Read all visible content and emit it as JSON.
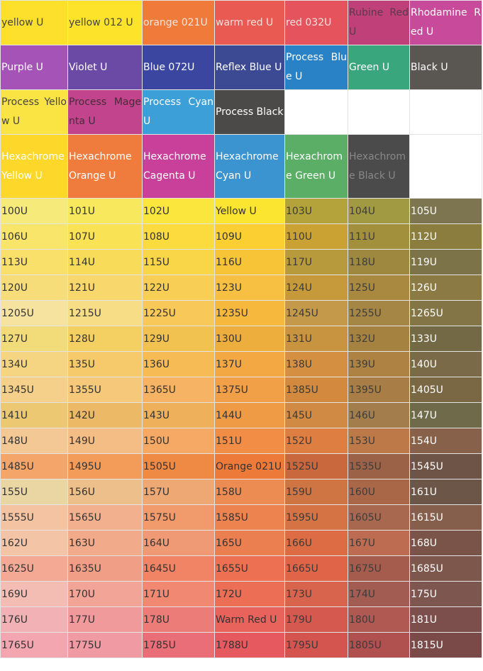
{
  "rows": [
    [
      {
        "text": "yellow U",
        "bg": "#fde02b",
        "fg": "#444"
      },
      {
        "text": "yellow 012 U",
        "bg": "#fde32a",
        "fg": "#444"
      },
      {
        "text": "orange 021U",
        "bg": "#ef7a3a",
        "fg": "#f4e4dc"
      },
      {
        "text": "warm red U",
        "bg": "#e85a52",
        "fg": "#f4e0dc"
      },
      {
        "text": "red 032U",
        "bg": "#e5545d",
        "fg": "#f4e0dc"
      },
      {
        "text": "Rubine Red U",
        "bg": "#c0407a",
        "fg": "#5a3a4a"
      },
      {
        "text": "Rhodamine Red U",
        "bg": "#c84a9b",
        "fg": "#fff"
      }
    ],
    [
      {
        "text": "Purple U",
        "bg": "#a553b7",
        "fg": "#fff"
      },
      {
        "text": "Violet U",
        "bg": "#6b4aa5",
        "fg": "#fff"
      },
      {
        "text": "Blue 072U",
        "bg": "#3a46a0",
        "fg": "#fff"
      },
      {
        "text": "Reflex Blue U",
        "bg": "#3b4a93",
        "fg": "#fff"
      },
      {
        "text": "Process Blue U",
        "bg": "#2a82c6",
        "fg": "#fff"
      },
      {
        "text": "Green U",
        "bg": "#3aa67e",
        "fg": "#fff"
      },
      {
        "text": "Black U",
        "bg": "#5a5753",
        "fg": "#fff"
      }
    ],
    [
      {
        "text": "Process Yellow U",
        "bg": "#fae443",
        "fg": "#444"
      },
      {
        "text": "Process Magenta U",
        "bg": "#c2448c",
        "fg": "#4a2a3a"
      },
      {
        "text": "Process Cyan U",
        "bg": "#3c9fd8",
        "fg": "#fff"
      },
      {
        "text": "Process Black",
        "bg": "#4b4a48",
        "fg": "#fff"
      },
      {
        "bg": "#fff"
      },
      {
        "bg": "#fff"
      },
      {
        "bg": "#fff"
      }
    ],
    [
      {
        "text": "Hexachrome Yellow U",
        "bg": "#fdd82a",
        "fg": "#fff"
      },
      {
        "text": "Hexachrome Orange U",
        "bg": "#ef7c3c",
        "fg": "#fff"
      },
      {
        "text": "Hexachrome Cagenta U",
        "bg": "#c8409a",
        "fg": "#fff"
      },
      {
        "text": "Hexachrome Cyan U",
        "bg": "#3b94d0",
        "fg": "#fff"
      },
      {
        "text": "Hexachrome Green U",
        "bg": "#5aae66",
        "fg": "#fff"
      },
      {
        "text": "Hexachrome Black U",
        "bg": "#4b4b4b",
        "fg": "#888"
      },
      {
        "bg": "#fff"
      }
    ],
    [
      {
        "text": "100U",
        "bg": "#f6ea7a"
      },
      {
        "text": "101U",
        "bg": "#f8e85e"
      },
      {
        "text": "102U",
        "bg": "#fae63c"
      },
      {
        "text": "Yellow U",
        "bg": "#fce530"
      },
      {
        "text": "103U",
        "bg": "#b3a33a"
      },
      {
        "text": "104U",
        "bg": "#a29a42"
      },
      {
        "text": "105U",
        "bg": "#7d7450"
      }
    ],
    [
      {
        "text": "106U",
        "bg": "#f8e56a"
      },
      {
        "text": "107U",
        "bg": "#f9e254"
      },
      {
        "text": "108U",
        "bg": "#fbdb3e"
      },
      {
        "text": "109U",
        "bg": "#fbcf32"
      },
      {
        "text": "110U",
        "bg": "#c9a233"
      },
      {
        "text": "111U",
        "bg": "#a3903d"
      },
      {
        "text": "112U",
        "bg": "#8a7d3e"
      }
    ],
    [
      {
        "text": "113U",
        "bg": "#f8e06a"
      },
      {
        "text": "114U",
        "bg": "#f9db5a"
      },
      {
        "text": "115U",
        "bg": "#f9d548"
      },
      {
        "text": "116U",
        "bg": "#f7c337"
      },
      {
        "text": "117U",
        "bg": "#b79a3c"
      },
      {
        "text": "118U",
        "bg": "#9e8840"
      },
      {
        "text": "119U",
        "bg": "#7c7448"
      }
    ],
    [
      {
        "text": "120U",
        "bg": "#f7dc7a"
      },
      {
        "text": "121U",
        "bg": "#f8d76c"
      },
      {
        "text": "122U",
        "bg": "#f9ce55"
      },
      {
        "text": "123U",
        "bg": "#f7c042"
      },
      {
        "text": "124U",
        "bg": "#c69a3a"
      },
      {
        "text": "125U",
        "bg": "#a98840"
      },
      {
        "text": "126U",
        "bg": "#8c7a44"
      }
    ],
    [
      {
        "text": "1205U",
        "bg": "#f6e3a0"
      },
      {
        "text": "1215U",
        "bg": "#f7dd86"
      },
      {
        "text": "1225U",
        "bg": "#f8c858"
      },
      {
        "text": "1235U",
        "bg": "#f6b93e"
      },
      {
        "text": "1245U",
        "bg": "#c49a4a"
      },
      {
        "text": "1255U",
        "bg": "#a58645"
      },
      {
        "text": "1265U",
        "bg": "#847547"
      }
    ],
    [
      {
        "text": "127U",
        "bg": "#f2dc7a"
      },
      {
        "text": "128U",
        "bg": "#f4d062"
      },
      {
        "text": "129U",
        "bg": "#f2c250"
      },
      {
        "text": "130U",
        "bg": "#eeae3e"
      },
      {
        "text": "131U",
        "bg": "#c9943f"
      },
      {
        "text": "132U",
        "bg": "#a58240"
      },
      {
        "text": "133U",
        "bg": "#736a45"
      }
    ],
    [
      {
        "text": "134U",
        "bg": "#f5d582"
      },
      {
        "text": "135U",
        "bg": "#f6c96a"
      },
      {
        "text": "136U",
        "bg": "#f6bb55"
      },
      {
        "text": "137U",
        "bg": "#f3a844"
      },
      {
        "text": "138U",
        "bg": "#d48f40"
      },
      {
        "text": "139U",
        "bg": "#ad8242"
      },
      {
        "text": "140U",
        "bg": "#7b6a48"
      }
    ],
    [
      {
        "text": "1345U",
        "bg": "#f5d08a"
      },
      {
        "text": "1355U",
        "bg": "#f6c87a"
      },
      {
        "text": "1365U",
        "bg": "#f5b363"
      },
      {
        "text": "1375U",
        "bg": "#f2a048"
      },
      {
        "text": "1385U",
        "bg": "#d48a3e"
      },
      {
        "text": "1395U",
        "bg": "#a97d46"
      },
      {
        "text": "1405U",
        "bg": "#7a6744"
      }
    ],
    [
      {
        "text": "141U",
        "bg": "#ecc873"
      },
      {
        "text": "142U",
        "bg": "#ecb966"
      },
      {
        "text": "143U",
        "bg": "#eeb05a"
      },
      {
        "text": "144U",
        "bg": "#ef9a45"
      },
      {
        "text": "145U",
        "bg": "#d08a44"
      },
      {
        "text": "146U",
        "bg": "#a37e4c"
      },
      {
        "text": "147U",
        "bg": "#6f6a4a"
      }
    ],
    [
      {
        "text": "148U",
        "bg": "#f4c894"
      },
      {
        "text": "149U",
        "bg": "#f5bd86"
      },
      {
        "text": "150U",
        "bg": "#f5a964"
      },
      {
        "text": "151U",
        "bg": "#f28d45"
      },
      {
        "text": "152U",
        "bg": "#de7e40"
      },
      {
        "text": "153U",
        "bg": "#bd7a48"
      },
      {
        "text": "154U",
        "bg": "#88614a"
      }
    ],
    [
      {
        "text": "1485U",
        "bg": "#f4a56a"
      },
      {
        "text": "1495U",
        "bg": "#f39b58"
      },
      {
        "text": "1505U",
        "bg": "#ef8a44"
      },
      {
        "text": "Orange 021U",
        "bg": "#ee7a3a"
      },
      {
        "text": "1525U",
        "bg": "#c8683c"
      },
      {
        "text": "1535U",
        "bg": "#9c6247"
      },
      {
        "text": "1545U",
        "bg": "#6e5446"
      }
    ],
    [
      {
        "text": "155U",
        "bg": "#ead6a2"
      },
      {
        "text": "156U",
        "bg": "#edbf8a"
      },
      {
        "text": "157U",
        "bg": "#eda874"
      },
      {
        "text": "158U",
        "bg": "#ec8c52"
      },
      {
        "text": "159U",
        "bg": "#cf7443"
      },
      {
        "text": "160U",
        "bg": "#a96748"
      },
      {
        "text": "161U",
        "bg": "#6c5648"
      }
    ],
    [
      {
        "text": "1555U",
        "bg": "#f4c4a2"
      },
      {
        "text": "1565U",
        "bg": "#f3b08e"
      },
      {
        "text": "1575U",
        "bg": "#f19a6c"
      },
      {
        "text": "1585U",
        "bg": "#ed844f"
      },
      {
        "text": "1595U",
        "bg": "#d57344"
      },
      {
        "text": "1605U",
        "bg": "#a86850"
      },
      {
        "text": "1615U",
        "bg": "#865f4c"
      }
    ],
    [
      {
        "text": "162U",
        "bg": "#f3c4a6"
      },
      {
        "text": "163U",
        "bg": "#f1ab8b"
      },
      {
        "text": "164U",
        "bg": "#ef9a74"
      },
      {
        "text": "165U",
        "bg": "#ec7f50"
      },
      {
        "text": "166U",
        "bg": "#dd6c44"
      },
      {
        "text": "167U",
        "bg": "#bd6c52"
      },
      {
        "text": "168U",
        "bg": "#7a5448"
      }
    ],
    [
      {
        "text": "1625U",
        "bg": "#f3a994"
      },
      {
        "text": "1635U",
        "bg": "#f19e86"
      },
      {
        "text": "1645U",
        "bg": "#f08464"
      },
      {
        "text": "1655U",
        "bg": "#ee7052"
      },
      {
        "text": "1665U",
        "bg": "#e06448"
      },
      {
        "text": "1675U",
        "bg": "#a65c4c"
      },
      {
        "text": "1685U",
        "bg": "#7d574c"
      }
    ],
    [
      {
        "text": "169U",
        "bg": "#f4bdb4"
      },
      {
        "text": "170U",
        "bg": "#f2a596"
      },
      {
        "text": "171U",
        "bg": "#f08872"
      },
      {
        "text": "172U",
        "bg": "#ec6e55"
      },
      {
        "text": "173U",
        "bg": "#d9644e"
      },
      {
        "text": "174U",
        "bg": "#a25c51"
      },
      {
        "text": "175U",
        "bg": "#7d5650"
      }
    ],
    [
      {
        "text": "176U",
        "bg": "#f2b1b4"
      },
      {
        "text": "177U",
        "bg": "#f09a9c"
      },
      {
        "text": "178U",
        "bg": "#ec7c78"
      },
      {
        "text": "Warm Red U",
        "bg": "#e8635c"
      },
      {
        "text": "179U",
        "bg": "#d5594f"
      },
      {
        "text": "180U",
        "bg": "#b05852"
      },
      {
        "text": "181U",
        "bg": "#7c4f4c"
      }
    ],
    [
      {
        "text": "1765U",
        "bg": "#f3a6b0"
      },
      {
        "text": "1775U",
        "bg": "#f09aa4"
      },
      {
        "text": "1785U",
        "bg": "#ea6e78"
      },
      {
        "text": "1788U",
        "bg": "#e65a5f"
      },
      {
        "text": "1795U",
        "bg": "#d45450"
      },
      {
        "text": "1805U",
        "bg": "#b0504f"
      },
      {
        "text": "1815U",
        "bg": "#7a4a48"
      }
    ]
  ]
}
